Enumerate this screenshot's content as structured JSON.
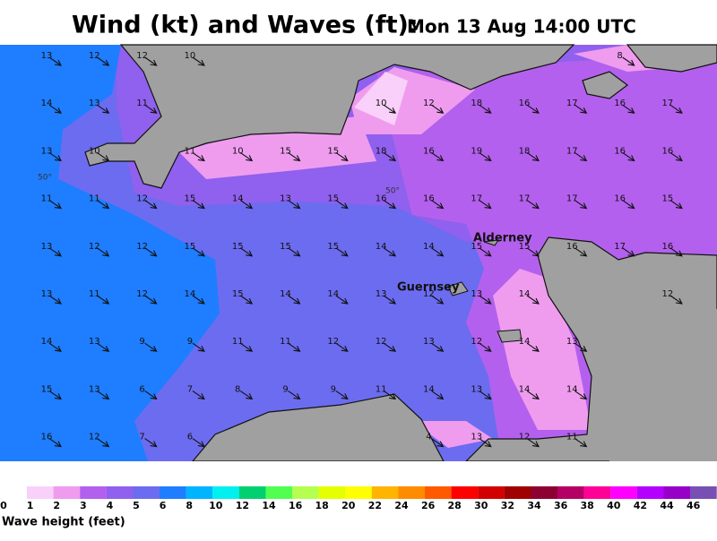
{
  "title": {
    "main": "Wind (kt) and Waves (ft):",
    "time": "Mon 13 Aug 14:00 UTC"
  },
  "map": {
    "wind_speeds": [
      [
        13,
        12,
        12,
        10,
        null,
        null,
        null,
        null,
        null,
        null,
        null,
        null,
        8,
        null
      ],
      [
        14,
        13,
        11,
        null,
        null,
        null,
        null,
        10,
        12,
        18,
        16,
        17,
        16,
        17
      ],
      [
        13,
        10,
        null,
        11,
        10,
        15,
        15,
        18,
        16,
        19,
        18,
        17,
        16,
        16
      ],
      [
        11,
        11,
        12,
        15,
        14,
        13,
        15,
        16,
        16,
        17,
        17,
        17,
        16,
        15
      ],
      [
        13,
        12,
        12,
        15,
        15,
        15,
        15,
        14,
        14,
        15,
        15,
        16,
        17,
        16
      ],
      [
        13,
        11,
        12,
        14,
        15,
        14,
        14,
        13,
        12,
        13,
        14,
        null,
        null,
        12
      ],
      [
        14,
        13,
        9,
        9,
        11,
        11,
        12,
        12,
        13,
        12,
        14,
        13,
        null,
        null
      ],
      [
        15,
        13,
        6,
        7,
        8,
        9,
        9,
        11,
        14,
        13,
        14,
        14,
        null,
        null
      ],
      [
        16,
        12,
        7,
        6,
        null,
        null,
        null,
        null,
        4,
        13,
        12,
        11,
        null,
        null
      ]
    ],
    "places": [
      "Alderney",
      "Guernsey"
    ],
    "latitude_labels": [
      "50°",
      "50°"
    ]
  },
  "legend": {
    "label": "Wave height (feet)",
    "ticks": [
      0,
      1,
      2,
      3,
      4,
      5,
      6,
      8,
      10,
      12,
      14,
      16,
      18,
      20,
      22,
      24,
      26,
      28,
      30,
      32,
      34,
      36,
      38,
      40,
      42,
      44,
      46
    ],
    "colors": [
      "#f9d0f9",
      "#ef9cef",
      "#b460ee",
      "#9060ee",
      "#6c6cf0",
      "#1e7eff",
      "#00b4ff",
      "#00f0f0",
      "#00d070",
      "#50ff50",
      "#b4ff50",
      "#e6ff00",
      "#ffff00",
      "#ffb400",
      "#ff8c00",
      "#ff5a00",
      "#ff0000",
      "#d20000",
      "#a00000",
      "#8c0032",
      "#b40064",
      "#ff0096",
      "#ff00ff",
      "#b400ff",
      "#9600c8",
      "#7850b4"
    ]
  }
}
